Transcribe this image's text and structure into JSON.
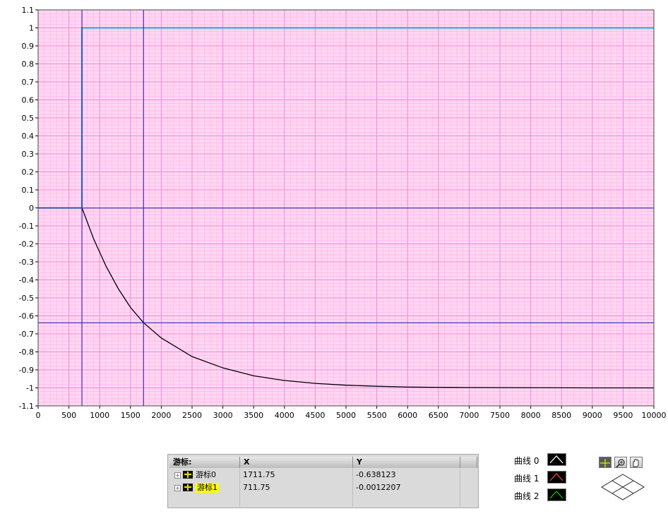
{
  "chart_data": {
    "type": "line",
    "xlim": [
      0,
      10000
    ],
    "ylim": [
      -1.1,
      1.1
    ],
    "x_ticks": [
      0,
      500,
      1000,
      1500,
      2000,
      2500,
      3000,
      3500,
      4000,
      4500,
      5000,
      5500,
      6000,
      6500,
      7000,
      7500,
      8000,
      8500,
      9000,
      9500,
      10000
    ],
    "y_ticks": [
      1.1,
      1,
      0.9,
      0.8,
      0.7,
      0.6,
      0.5,
      0.4,
      0.3,
      0.2,
      0.1,
      0,
      -0.1,
      -0.2,
      -0.3,
      -0.4,
      -0.5,
      -0.6,
      -0.7,
      -0.8,
      -0.9,
      -1,
      -1.1
    ],
    "grid": true,
    "series": [
      {
        "name": "曲线 0",
        "color": "#29a3d6",
        "x": [
          0,
          711.75,
          711.75,
          10000
        ],
        "y": [
          0,
          0,
          1,
          1
        ]
      },
      {
        "name": "曲线 1",
        "color": "#000000",
        "x": [
          711.75,
          900,
          1100,
          1300,
          1500,
          1711.75,
          2000,
          2500,
          3000,
          3500,
          4000,
          4500,
          5000,
          5500,
          6000,
          6500,
          7000,
          8000,
          9000,
          10000
        ],
        "y": [
          0,
          -0.171,
          -0.322,
          -0.448,
          -0.553,
          -0.638,
          -0.723,
          -0.826,
          -0.889,
          -0.933,
          -0.959,
          -0.975,
          -0.985,
          -0.991,
          -0.995,
          -0.997,
          -0.998,
          -0.999,
          -1,
          -1
        ]
      }
    ],
    "cursors": [
      {
        "name": "游标0",
        "x": 1711.75,
        "y": -0.638123
      },
      {
        "name": "游标1",
        "x": 711.75,
        "y": -0.0012207
      }
    ],
    "axis_colors": {
      "background": "#ffd6f2",
      "major_grid": "#f08bd8",
      "minor_grid": "#ffb3e8",
      "cursor": "#1a1aa8"
    }
  },
  "cursor_panel": {
    "headers": {
      "name": "游标:",
      "x": "X",
      "y": "Y"
    },
    "rows": [
      {
        "name": "游标0",
        "x": "1711.75",
        "y": "-0.638123",
        "highlight": false
      },
      {
        "name": "游标1",
        "x": "711.75",
        "y": "-0.0012207",
        "highlight": true
      }
    ]
  },
  "legend": [
    {
      "label": "曲线 0",
      "color": "#ffffff"
    },
    {
      "label": "曲线 1",
      "color": "#ff3b30"
    },
    {
      "label": "曲线 2",
      "color": "#00c800"
    }
  ],
  "palette": {
    "tools": [
      "crosshair-icon",
      "zoom-icon",
      "pan-hand-icon"
    ]
  }
}
